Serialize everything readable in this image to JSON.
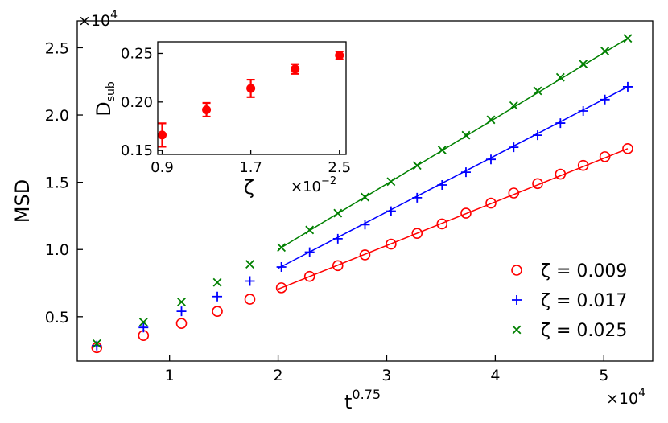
{
  "chart_data": [
    {
      "type": "scatter",
      "title": "",
      "xlabel": "t",
      "xlabel_sup": "0.75",
      "ylabel": "MSD",
      "x_multiplier": "×10",
      "x_multiplier_exp": "4",
      "y_multiplier": "×10",
      "y_multiplier_exp": "4",
      "xlim": [
        0.15,
        5.45
      ],
      "ylim": [
        0.17,
        2.7
      ],
      "xticks": [
        1,
        2,
        3,
        4,
        5
      ],
      "yticks": [
        0.5,
        1.0,
        1.5,
        2.0,
        2.5
      ],
      "xtick_labels": [
        "1",
        "2",
        "3",
        "4",
        "5"
      ],
      "ytick_labels": [
        "0.5",
        "1.0",
        "1.5",
        "2.0",
        "2.5"
      ],
      "grid": false,
      "legend": "bottom-right",
      "series": [
        {
          "name": "ζ = 0.009",
          "color": "#ff0000",
          "marker": "circle-open",
          "x": [
            0.33,
            0.76,
            1.11,
            1.44,
            1.74,
            2.03,
            2.29,
            2.55,
            2.8,
            3.04,
            3.28,
            3.51,
            3.73,
            3.96,
            4.17,
            4.39,
            4.6,
            4.81,
            5.01,
            5.22
          ],
          "y": [
            0.27,
            0.36,
            0.45,
            0.54,
            0.63,
            0.715,
            0.8,
            0.88,
            0.96,
            1.04,
            1.12,
            1.19,
            1.27,
            1.345,
            1.42,
            1.49,
            1.56,
            1.625,
            1.69,
            1.75
          ],
          "fit_x": [
            2.0,
            5.22
          ],
          "fit_y": [
            0.705,
            1.75
          ]
        },
        {
          "name": "ζ = 0.017",
          "color": "#0000ff",
          "marker": "plus",
          "x": [
            0.33,
            0.76,
            1.11,
            1.44,
            1.74,
            2.03,
            2.29,
            2.55,
            2.8,
            3.04,
            3.28,
            3.51,
            3.73,
            3.96,
            4.17,
            4.39,
            4.6,
            4.81,
            5.01,
            5.22
          ],
          "y": [
            0.285,
            0.42,
            0.54,
            0.65,
            0.765,
            0.87,
            0.98,
            1.08,
            1.185,
            1.285,
            1.385,
            1.48,
            1.575,
            1.67,
            1.76,
            1.85,
            1.94,
            2.03,
            2.115,
            2.21
          ],
          "fit_x": [
            2.0,
            5.22
          ],
          "fit_y": [
            0.86,
            2.21
          ]
        },
        {
          "name": "ζ = 0.025",
          "color": "#008000",
          "marker": "cross",
          "x": [
            0.33,
            0.76,
            1.11,
            1.44,
            1.74,
            2.03,
            2.29,
            2.55,
            2.8,
            3.04,
            3.28,
            3.51,
            3.73,
            3.96,
            4.17,
            4.39,
            4.6,
            4.81,
            5.01,
            5.22
          ],
          "y": [
            0.3,
            0.46,
            0.61,
            0.755,
            0.89,
            1.015,
            1.145,
            1.27,
            1.39,
            1.505,
            1.625,
            1.74,
            1.85,
            1.965,
            2.07,
            2.18,
            2.28,
            2.38,
            2.475,
            2.57
          ],
          "fit_x": [
            2.0,
            5.22
          ],
          "fit_y": [
            1.0,
            2.57
          ]
        }
      ]
    },
    {
      "type": "scatter",
      "title": "",
      "xlabel": "ζ",
      "ylabel": "D",
      "ylabel_sub": "sub",
      "x_multiplier": "×10",
      "x_multiplier_exp": "−2",
      "xlim": [
        0.86,
        2.56
      ],
      "ylim": [
        0.146,
        0.262
      ],
      "xticks": [
        0.9,
        1.7,
        2.5
      ],
      "yticks": [
        0.15,
        0.2,
        0.25
      ],
      "xtick_labels": [
        "0.9",
        "1.7",
        "2.5"
      ],
      "ytick_labels": [
        "0.15",
        "0.20",
        "0.25"
      ],
      "grid": false,
      "series": [
        {
          "color": "#ff0000",
          "marker": "circle-filled",
          "x": [
            0.9,
            1.3,
            1.7,
            2.1,
            2.5
          ],
          "y": [
            0.166,
            0.192,
            0.214,
            0.234,
            0.248
          ],
          "err": [
            0.012,
            0.007,
            0.009,
            0.005,
            0.004
          ]
        }
      ]
    }
  ]
}
